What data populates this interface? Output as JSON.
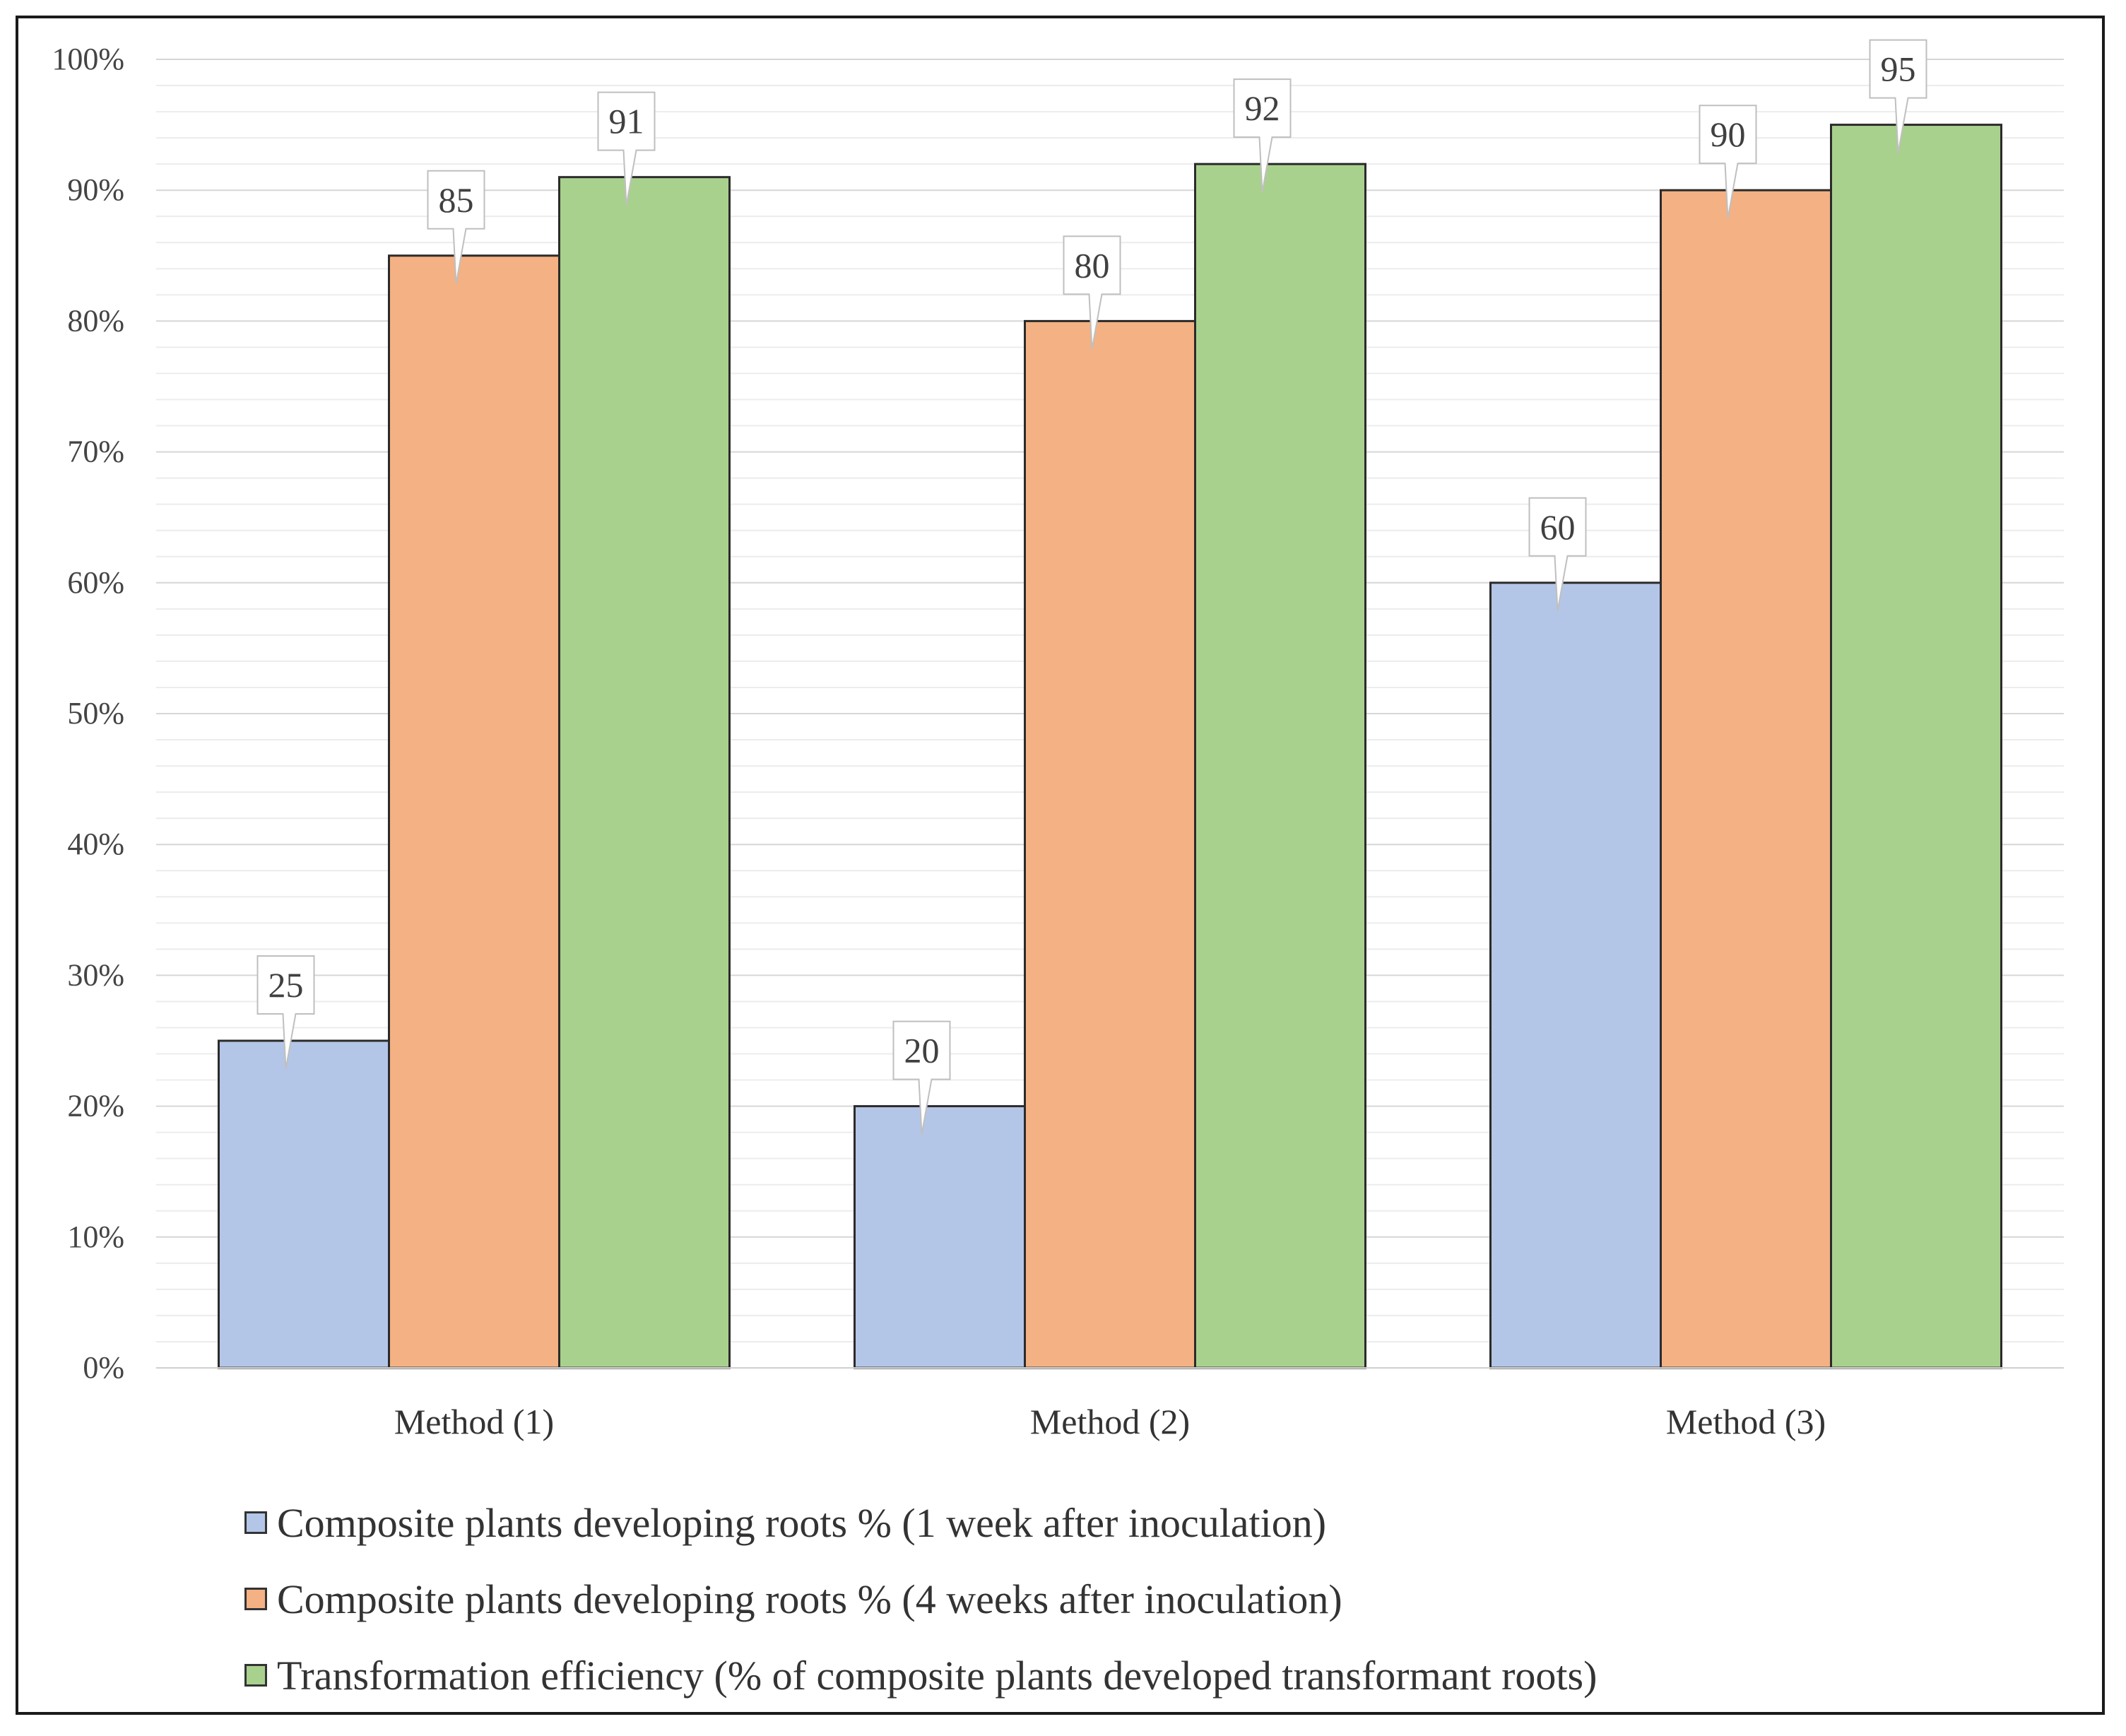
{
  "chart_data": {
    "type": "bar",
    "categories": [
      "Method (1)",
      "Method (2)",
      "Method (3)"
    ],
    "series": [
      {
        "name": "Composite plants developing roots % (1 week after inoculation)",
        "values": [
          25,
          20,
          60
        ],
        "color": "#b4c6e7",
        "labels": [
          "25",
          "20",
          "60"
        ]
      },
      {
        "name": "Composite plants developing roots % (4 weeks after inoculation)",
        "values": [
          85,
          80,
          90
        ],
        "color": "#f4b183",
        "labels": [
          "85",
          "80",
          "90"
        ]
      },
      {
        "name": "Transformation efficiency (% of composite plants developed transformant roots)",
        "values": [
          91,
          92,
          95
        ],
        "color": "#a9d18e",
        "labels": [
          "91",
          "92",
          "95"
        ]
      }
    ],
    "yticks": [
      "0%",
      "10%",
      "20%",
      "30%",
      "40%",
      "50%",
      "60%",
      "70%",
      "80%",
      "90%",
      "100%"
    ],
    "ylim": [
      0,
      100
    ],
    "minor_gridlines_step": 2,
    "title": "",
    "xlabel": "",
    "ylabel": "",
    "legend_position": "bottom"
  }
}
